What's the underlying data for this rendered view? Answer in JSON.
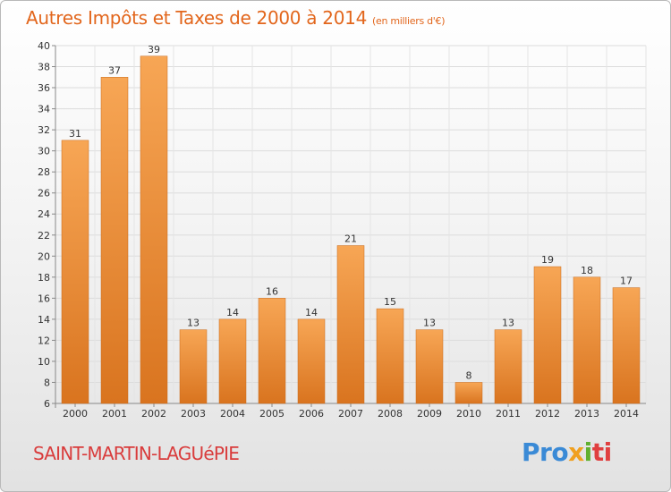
{
  "header": {
    "title": "Autres Impôts et Taxes de 2000 à 2014",
    "subtitle": "(en milliers d'€)"
  },
  "footer": {
    "commune": "SAINT-MARTIN-LAGUéPIE",
    "brand_parts": [
      "Pro",
      "x",
      "i",
      "ti"
    ]
  },
  "colors": {
    "bar_top": "#f7a655",
    "bar_bottom": "#d9741f",
    "title": "#e2661c",
    "commune": "#d93c3c"
  },
  "chart_data": {
    "type": "bar",
    "categories": [
      "2000",
      "2001",
      "2002",
      "2003",
      "2004",
      "2005",
      "2006",
      "2007",
      "2008",
      "2009",
      "2010",
      "2011",
      "2012",
      "2013",
      "2014"
    ],
    "values": [
      31,
      37,
      39,
      13,
      14,
      16,
      14,
      21,
      15,
      13,
      8,
      13,
      19,
      18,
      17
    ],
    "ylim": [
      6,
      40
    ],
    "yticks": [
      6,
      8,
      10,
      12,
      14,
      16,
      18,
      20,
      22,
      24,
      26,
      28,
      30,
      32,
      34,
      36,
      38,
      40
    ],
    "grid": true
  }
}
